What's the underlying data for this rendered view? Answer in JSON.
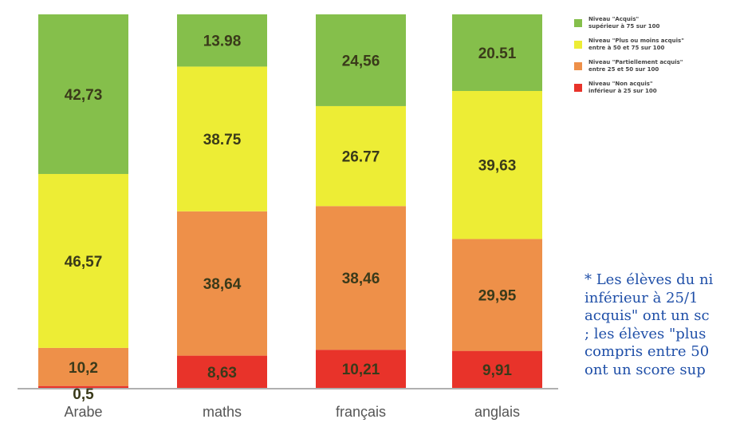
{
  "chart_data": {
    "type": "bar",
    "stacked": true,
    "categories": [
      "Arabe",
      "maths",
      "français",
      "anglais"
    ],
    "ylim": [
      0,
      100
    ],
    "grid": false,
    "legend_position": "right",
    "series": [
      {
        "key": "non_acquis",
        "color": "#e8332a",
        "values": [
          0.5,
          8.63,
          10.21,
          9.91
        ],
        "labels": [
          "0,5",
          "8,63",
          "10,21",
          "9,91"
        ]
      },
      {
        "key": "partiellement",
        "color": "#ee9049",
        "values": [
          10.2,
          38.64,
          38.46,
          29.95
        ],
        "labels": [
          "10,2",
          "38,64",
          "38,46",
          "29,95"
        ]
      },
      {
        "key": "plus_ou_moins",
        "color": "#eded35",
        "values": [
          46.57,
          38.75,
          26.77,
          39.63
        ],
        "labels": [
          "46,57",
          "38.75",
          "26.77",
          "39,63"
        ]
      },
      {
        "key": "acquis",
        "color": "#85bf4b",
        "values": [
          42.73,
          13.98,
          24.56,
          20.51
        ],
        "labels": [
          "42,73",
          "13.98",
          "24,56",
          "20.51"
        ]
      }
    ]
  },
  "legend": [
    {
      "text": "Niveau \"Acquis\"\nsupérieur à 75 sur 100",
      "color": "#85bf4b"
    },
    {
      "text": "Niveau \"Plus ou moins acquis\"\nentre à 50 et 75 sur 100",
      "color": "#eded35"
    },
    {
      "text": "Niveau \"Partiellement acquis\"\nentre 25 et 50 sur 100",
      "color": "#ee9049"
    },
    {
      "text": "Niveau \"Non acquis\"\ninférieur à 25 sur 100",
      "color": "#e8332a"
    }
  ],
  "note": {
    "lines": [
      "* Les élèves du ni",
      "inférieur à 25/1",
      "acquis\" ont un sc",
      "; les élèves \"plus",
      "compris entre 50",
      "ont un score sup"
    ]
  }
}
